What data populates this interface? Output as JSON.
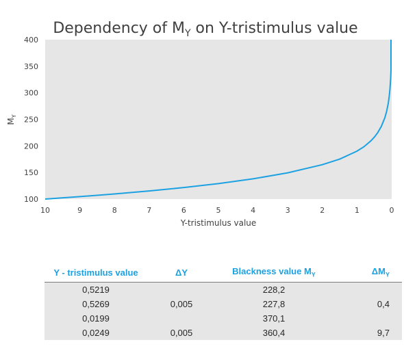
{
  "chart_data": {
    "type": "line",
    "title": "Dependency of M",
    "title_subscript": "Y",
    "title_suffix": " on Y-tristimulus value",
    "xlabel": "Y-tristimulus value",
    "ylabel": "M",
    "ylabel_subscript": "Y",
    "xlim": [
      10,
      0
    ],
    "ylim": [
      100,
      400
    ],
    "x_reversed": true,
    "x_ticks": [
      "10",
      "9",
      "8",
      "7",
      "6",
      "5",
      "4",
      "3",
      "2",
      "1",
      "0"
    ],
    "y_ticks": [
      "100",
      "150",
      "200",
      "250",
      "300",
      "350",
      "400"
    ],
    "grid": false,
    "legend": "none",
    "line_color": "#1ba1e2",
    "plot_background": "#e6e6e6",
    "series": [
      {
        "x": [
          10,
          9,
          8,
          7,
          6,
          5,
          4,
          3,
          2,
          1.5,
          1,
          0.8,
          0.6,
          0.5,
          0.4,
          0.3,
          0.2,
          0.15,
          0.1,
          0.07,
          0.05,
          0.03,
          0.02,
          0.0195
        ],
        "values": [
          100,
          104.6,
          109.7,
          115.3,
          121.7,
          129.1,
          138.1,
          149.4,
          164.8,
          175.2,
          190.3,
          198.5,
          209.5,
          216.6,
          225.3,
          236.6,
          252.5,
          263.8,
          279.6,
          293.8,
          306.9,
          325.9,
          341.7,
          400
        ]
      }
    ]
  },
  "table": {
    "headers": [
      "Y - tristimulus value",
      "ΔY",
      "Blackness value M",
      "ΔM"
    ],
    "header_subscripts": [
      "",
      "",
      "Y",
      "Y"
    ],
    "rows": [
      [
        "0,5219",
        "",
        "228,2",
        ""
      ],
      [
        "0,5269",
        "0,005",
        "227,8",
        "0,4"
      ],
      [
        "0,0199",
        "",
        "370,1",
        ""
      ],
      [
        "0,0249",
        "0,005",
        "360,4",
        "9,7"
      ]
    ]
  }
}
